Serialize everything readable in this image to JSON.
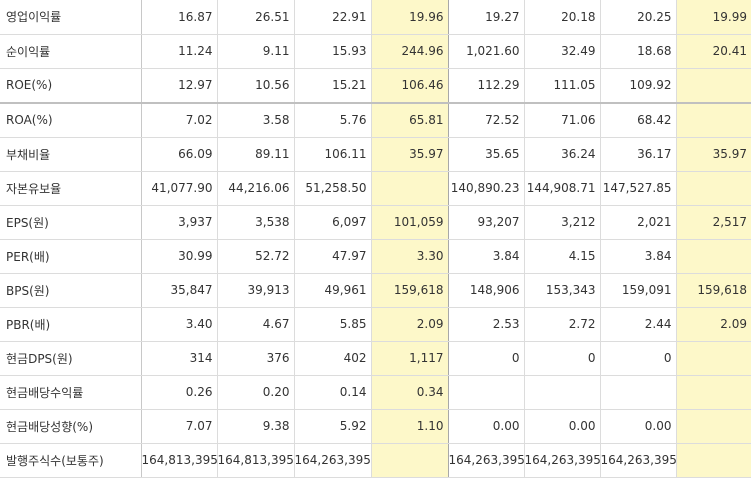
{
  "rows": [
    {
      "label": "영업이익률",
      "values": [
        "16.87",
        "26.51",
        "22.91",
        "19.96",
        "19.27",
        "20.18",
        "20.25",
        "19.99"
      ]
    },
    {
      "label": "순이익률",
      "values": [
        "11.24",
        "9.11",
        "15.93",
        "244.96",
        "1,021.60",
        "32.49",
        "18.68",
        "20.41"
      ]
    },
    {
      "label": "ROE(%)",
      "values": [
        "12.97",
        "10.56",
        "15.21",
        "106.46",
        "112.29",
        "111.05",
        "109.92",
        ""
      ]
    },
    {
      "label": "ROA(%)",
      "values": [
        "7.02",
        "3.58",
        "5.76",
        "65.81",
        "72.52",
        "71.06",
        "68.42",
        ""
      ]
    },
    {
      "label": "부채비율",
      "values": [
        "66.09",
        "89.11",
        "106.11",
        "35.97",
        "35.65",
        "36.24",
        "36.17",
        "35.97"
      ]
    },
    {
      "label": "자본유보율",
      "values": [
        "41,077.90",
        "44,216.06",
        "51,258.50",
        "",
        "140,890.23",
        "144,908.71",
        "147,527.85",
        ""
      ]
    },
    {
      "label": "EPS(원)",
      "values": [
        "3,937",
        "3,538",
        "6,097",
        "101,059",
        "93,207",
        "3,212",
        "2,021",
        "2,517"
      ]
    },
    {
      "label": "PER(배)",
      "values": [
        "30.99",
        "52.72",
        "47.97",
        "3.30",
        "3.84",
        "4.15",
        "3.84",
        ""
      ]
    },
    {
      "label": "BPS(원)",
      "values": [
        "35,847",
        "39,913",
        "49,961",
        "159,618",
        "148,906",
        "153,343",
        "159,091",
        "159,618"
      ]
    },
    {
      "label": "PBR(배)",
      "values": [
        "3.40",
        "4.67",
        "5.85",
        "2.09",
        "2.53",
        "2.72",
        "2.44",
        "2.09"
      ]
    },
    {
      "label": "현금DPS(원)",
      "values": [
        "314",
        "376",
        "402",
        "1,117",
        "0",
        "0",
        "0",
        ""
      ]
    },
    {
      "label": "현금배당수익률",
      "values": [
        "0.26",
        "0.20",
        "0.14",
        "0.34",
        "",
        "",
        "",
        ""
      ]
    },
    {
      "label": "현금배당성향(%)",
      "values": [
        "7.07",
        "9.38",
        "5.92",
        "1.10",
        "0.00",
        "0.00",
        "0.00",
        ""
      ]
    },
    {
      "label": "발행주식수(보통주)",
      "values": [
        "164,813,395",
        "164,813,395",
        "164,263,395",
        "",
        "164,263,395",
        "164,263,395",
        "164,263,395",
        ""
      ]
    }
  ],
  "colors": {
    "highlight": "#fdf8c9",
    "grid": "#dcdcdc"
  }
}
